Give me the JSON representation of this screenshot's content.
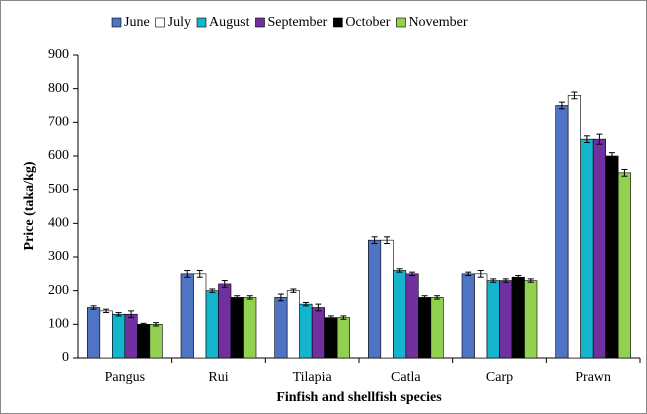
{
  "chart_data": {
    "type": "bar",
    "categories": [
      "Pangus",
      "Rui",
      "Tilapia",
      "Catla",
      "Carp",
      "Prawn"
    ],
    "series": [
      {
        "name": "June",
        "color": "#4f74c4",
        "values": [
          150,
          250,
          180,
          350,
          250,
          750
        ],
        "errors": [
          5,
          10,
          10,
          10,
          5,
          10
        ]
      },
      {
        "name": "July",
        "color": "#ffffff",
        "values": [
          140,
          250,
          200,
          350,
          250,
          780
        ],
        "errors": [
          5,
          10,
          5,
          10,
          10,
          10
        ]
      },
      {
        "name": "August",
        "color": "#14b4cc",
        "values": [
          130,
          200,
          160,
          260,
          230,
          650
        ],
        "errors": [
          5,
          5,
          5,
          5,
          5,
          10
        ]
      },
      {
        "name": "September",
        "color": "#7030a0",
        "values": [
          130,
          220,
          150,
          250,
          230,
          650
        ],
        "errors": [
          10,
          10,
          10,
          5,
          5,
          15
        ]
      },
      {
        "name": "October",
        "color": "#000000",
        "values": [
          100,
          180,
          120,
          180,
          240,
          600
        ],
        "errors": [
          3,
          5,
          5,
          5,
          5,
          10
        ]
      },
      {
        "name": "November",
        "color": "#92d050",
        "values": [
          100,
          180,
          120,
          180,
          230,
          550
        ],
        "errors": [
          5,
          5,
          5,
          5,
          5,
          10
        ]
      }
    ],
    "y_label": "Price (taka/kg)",
    "x_label": "Finfish and shellfish species",
    "ylim": [
      0,
      900
    ],
    "yticks": [
      0,
      100,
      200,
      300,
      400,
      500,
      600,
      700,
      800,
      900
    ],
    "legend": "top"
  }
}
